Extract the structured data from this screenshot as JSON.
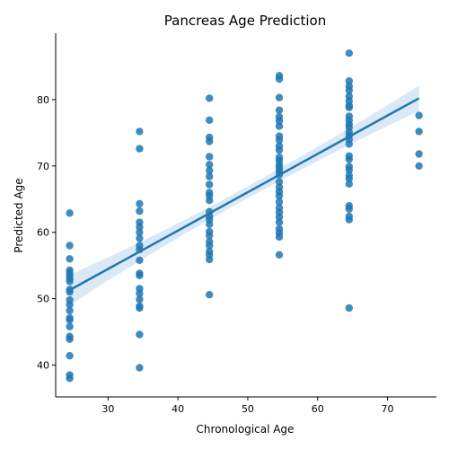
{
  "chart_data": {
    "type": "scatter",
    "title": "Pancreas Age Prediction",
    "xlabel": "Chronological Age",
    "ylabel": "Predicted Age",
    "xlim": [
      22.5,
      77
    ],
    "ylim": [
      35.2,
      90
    ],
    "xticks": [
      30,
      40,
      50,
      60,
      70
    ],
    "yticks": [
      40,
      50,
      60,
      70,
      80
    ],
    "grid": false,
    "colors": {
      "points": "#1f77b4",
      "regression_line": "#1f77b4",
      "confidence_band": "#cfe0f2"
    },
    "points": [
      {
        "x": 24.5,
        "y": 62.9
      },
      {
        "x": 24.5,
        "y": 58.0
      },
      {
        "x": 24.5,
        "y": 56.0
      },
      {
        "x": 24.5,
        "y": 54.3
      },
      {
        "x": 24.5,
        "y": 53.9
      },
      {
        "x": 24.5,
        "y": 53.5
      },
      {
        "x": 24.5,
        "y": 53.0
      },
      {
        "x": 24.5,
        "y": 52.6
      },
      {
        "x": 24.5,
        "y": 51.4
      },
      {
        "x": 24.5,
        "y": 51.0
      },
      {
        "x": 24.5,
        "y": 49.8
      },
      {
        "x": 24.5,
        "y": 49.1
      },
      {
        "x": 24.5,
        "y": 48.2
      },
      {
        "x": 24.5,
        "y": 47.1
      },
      {
        "x": 24.5,
        "y": 46.8
      },
      {
        "x": 24.5,
        "y": 45.8
      },
      {
        "x": 24.5,
        "y": 44.3
      },
      {
        "x": 24.5,
        "y": 43.9
      },
      {
        "x": 24.5,
        "y": 41.4
      },
      {
        "x": 24.5,
        "y": 38.5
      },
      {
        "x": 24.5,
        "y": 38.0
      },
      {
        "x": 34.5,
        "y": 75.2
      },
      {
        "x": 34.5,
        "y": 72.6
      },
      {
        "x": 34.5,
        "y": 64.3
      },
      {
        "x": 34.5,
        "y": 63.2
      },
      {
        "x": 34.5,
        "y": 61.5
      },
      {
        "x": 34.5,
        "y": 60.8
      },
      {
        "x": 34.5,
        "y": 60.0
      },
      {
        "x": 34.5,
        "y": 59.1
      },
      {
        "x": 34.5,
        "y": 58.0
      },
      {
        "x": 34.5,
        "y": 57.4
      },
      {
        "x": 34.5,
        "y": 55.8
      },
      {
        "x": 34.5,
        "y": 53.8
      },
      {
        "x": 34.5,
        "y": 53.5
      },
      {
        "x": 34.5,
        "y": 51.5
      },
      {
        "x": 34.5,
        "y": 50.8
      },
      {
        "x": 34.5,
        "y": 49.9
      },
      {
        "x": 34.5,
        "y": 48.9
      },
      {
        "x": 34.5,
        "y": 48.6
      },
      {
        "x": 34.5,
        "y": 44.6
      },
      {
        "x": 34.5,
        "y": 39.6
      },
      {
        "x": 44.5,
        "y": 80.2
      },
      {
        "x": 44.5,
        "y": 76.9
      },
      {
        "x": 44.5,
        "y": 74.3
      },
      {
        "x": 44.5,
        "y": 73.7
      },
      {
        "x": 44.5,
        "y": 71.4
      },
      {
        "x": 44.5,
        "y": 70.2
      },
      {
        "x": 44.5,
        "y": 69.3
      },
      {
        "x": 44.5,
        "y": 68.4
      },
      {
        "x": 44.5,
        "y": 67.2
      },
      {
        "x": 44.5,
        "y": 66.0
      },
      {
        "x": 44.5,
        "y": 65.5
      },
      {
        "x": 44.5,
        "y": 64.8
      },
      {
        "x": 44.5,
        "y": 63.1
      },
      {
        "x": 44.5,
        "y": 62.4
      },
      {
        "x": 44.5,
        "y": 61.9
      },
      {
        "x": 44.5,
        "y": 61.2
      },
      {
        "x": 44.5,
        "y": 60.1
      },
      {
        "x": 44.5,
        "y": 59.5
      },
      {
        "x": 44.5,
        "y": 58.6
      },
      {
        "x": 44.5,
        "y": 58.0
      },
      {
        "x": 44.5,
        "y": 57.1
      },
      {
        "x": 44.5,
        "y": 56.6
      },
      {
        "x": 44.5,
        "y": 55.9
      },
      {
        "x": 44.5,
        "y": 50.6
      },
      {
        "x": 54.5,
        "y": 83.6
      },
      {
        "x": 54.5,
        "y": 83.1
      },
      {
        "x": 54.5,
        "y": 80.3
      },
      {
        "x": 54.5,
        "y": 78.4
      },
      {
        "x": 54.5,
        "y": 77.4
      },
      {
        "x": 54.5,
        "y": 76.8
      },
      {
        "x": 54.5,
        "y": 76.0
      },
      {
        "x": 54.5,
        "y": 74.5
      },
      {
        "x": 54.5,
        "y": 73.9
      },
      {
        "x": 54.5,
        "y": 73.0
      },
      {
        "x": 54.5,
        "y": 72.4
      },
      {
        "x": 54.5,
        "y": 71.3
      },
      {
        "x": 54.5,
        "y": 70.8
      },
      {
        "x": 54.5,
        "y": 70.2
      },
      {
        "x": 54.5,
        "y": 69.7
      },
      {
        "x": 54.5,
        "y": 69.2
      },
      {
        "x": 54.5,
        "y": 68.7
      },
      {
        "x": 54.5,
        "y": 67.6
      },
      {
        "x": 54.5,
        "y": 66.8
      },
      {
        "x": 54.5,
        "y": 66.1
      },
      {
        "x": 54.5,
        "y": 65.5
      },
      {
        "x": 54.5,
        "y": 64.6
      },
      {
        "x": 54.5,
        "y": 63.7
      },
      {
        "x": 54.5,
        "y": 63.0
      },
      {
        "x": 54.5,
        "y": 62.3
      },
      {
        "x": 54.5,
        "y": 61.5
      },
      {
        "x": 54.5,
        "y": 60.5
      },
      {
        "x": 54.5,
        "y": 59.9
      },
      {
        "x": 54.5,
        "y": 59.3
      },
      {
        "x": 54.5,
        "y": 56.6
      },
      {
        "x": 64.5,
        "y": 87.0
      },
      {
        "x": 64.5,
        "y": 82.8
      },
      {
        "x": 64.5,
        "y": 82.0
      },
      {
        "x": 64.5,
        "y": 81.4
      },
      {
        "x": 64.5,
        "y": 80.5
      },
      {
        "x": 64.5,
        "y": 79.8
      },
      {
        "x": 64.5,
        "y": 79.1
      },
      {
        "x": 64.5,
        "y": 78.8
      },
      {
        "x": 64.5,
        "y": 77.5
      },
      {
        "x": 64.5,
        "y": 76.9
      },
      {
        "x": 64.5,
        "y": 76.3
      },
      {
        "x": 64.5,
        "y": 75.8
      },
      {
        "x": 64.5,
        "y": 75.1
      },
      {
        "x": 64.5,
        "y": 74.6
      },
      {
        "x": 64.5,
        "y": 74.0
      },
      {
        "x": 64.5,
        "y": 73.3
      },
      {
        "x": 64.5,
        "y": 71.5
      },
      {
        "x": 64.5,
        "y": 71.0
      },
      {
        "x": 64.5,
        "y": 69.9
      },
      {
        "x": 64.5,
        "y": 69.4
      },
      {
        "x": 64.5,
        "y": 68.6
      },
      {
        "x": 64.5,
        "y": 68.1
      },
      {
        "x": 64.5,
        "y": 67.3
      },
      {
        "x": 64.5,
        "y": 64.0
      },
      {
        "x": 64.5,
        "y": 63.5
      },
      {
        "x": 64.5,
        "y": 62.4
      },
      {
        "x": 64.5,
        "y": 61.9
      },
      {
        "x": 64.5,
        "y": 48.6
      },
      {
        "x": 74.5,
        "y": 77.6
      },
      {
        "x": 74.5,
        "y": 75.2
      },
      {
        "x": 74.5,
        "y": 71.8
      },
      {
        "x": 74.5,
        "y": 70.0
      }
    ],
    "regression": {
      "x_start": 24.5,
      "y_start": 51.3,
      "x_end": 74.5,
      "y_end": 80.2,
      "ci_halfwidth_start": 2.3,
      "ci_halfwidth_mid": 0.9,
      "ci_halfwidth_end": 1.9
    }
  }
}
